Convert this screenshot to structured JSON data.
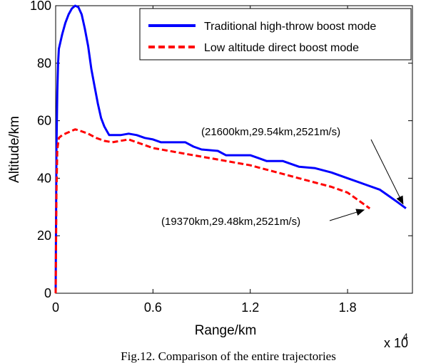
{
  "chart_data": {
    "type": "line",
    "xlabel": "Range/km",
    "ylabel": "Altitude/km",
    "x_multiplier": "x 10",
    "x_multiplier_exp": "4",
    "xlim": [
      0,
      2.2
    ],
    "ylim": [
      0,
      100
    ],
    "xticks": [
      "0",
      "0.6",
      "1.2",
      "1.8"
    ],
    "xtick_values": [
      0,
      0.6,
      1.2,
      1.8
    ],
    "yticks": [
      "0",
      "20",
      "40",
      "60",
      "80",
      "100"
    ],
    "ytick_values": [
      0,
      20,
      40,
      60,
      80,
      100
    ],
    "grid": false,
    "legend_position": "top-right",
    "series": [
      {
        "name": "Traditional high-throw boost mode",
        "color": "#0000ff",
        "style": "solid",
        "points": [
          [
            0,
            0
          ],
          [
            0.005,
            50
          ],
          [
            0.01,
            70
          ],
          [
            0.015,
            80
          ],
          [
            0.02,
            85
          ],
          [
            0.04,
            90
          ],
          [
            0.06,
            94
          ],
          [
            0.08,
            97
          ],
          [
            0.1,
            99
          ],
          [
            0.12,
            100
          ],
          [
            0.14,
            99.5
          ],
          [
            0.16,
            97
          ],
          [
            0.18,
            92
          ],
          [
            0.2,
            86
          ],
          [
            0.22,
            78
          ],
          [
            0.24,
            72
          ],
          [
            0.26,
            66
          ],
          [
            0.28,
            61
          ],
          [
            0.3,
            58
          ],
          [
            0.32,
            56
          ],
          [
            0.33,
            55
          ],
          [
            0.4,
            55
          ],
          [
            0.45,
            55.5
          ],
          [
            0.5,
            55
          ],
          [
            0.55,
            54
          ],
          [
            0.6,
            53.5
          ],
          [
            0.65,
            52.5
          ],
          [
            0.8,
            52.5
          ],
          [
            0.85,
            51
          ],
          [
            0.9,
            50
          ],
          [
            1.0,
            49.5
          ],
          [
            1.05,
            48
          ],
          [
            1.2,
            48
          ],
          [
            1.25,
            47
          ],
          [
            1.3,
            46
          ],
          [
            1.4,
            46
          ],
          [
            1.45,
            45
          ],
          [
            1.5,
            44
          ],
          [
            1.6,
            43.5
          ],
          [
            1.7,
            42
          ],
          [
            1.8,
            40
          ],
          [
            1.9,
            38
          ],
          [
            2.0,
            36
          ],
          [
            2.05,
            34
          ],
          [
            2.1,
            32
          ],
          [
            2.16,
            29.54
          ]
        ]
      },
      {
        "name": "Low altitude direct boost mode",
        "color": "#ff0000",
        "style": "dashed",
        "points": [
          [
            0,
            0
          ],
          [
            0.005,
            35
          ],
          [
            0.01,
            50
          ],
          [
            0.02,
            54
          ],
          [
            0.04,
            55
          ],
          [
            0.06,
            55.5
          ],
          [
            0.08,
            56
          ],
          [
            0.1,
            56.5
          ],
          [
            0.12,
            57
          ],
          [
            0.15,
            56.5
          ],
          [
            0.2,
            55.5
          ],
          [
            0.25,
            54
          ],
          [
            0.3,
            53
          ],
          [
            0.35,
            52.5
          ],
          [
            0.4,
            53
          ],
          [
            0.45,
            53.5
          ],
          [
            0.5,
            52.5
          ],
          [
            0.55,
            51.5
          ],
          [
            0.6,
            50.5
          ],
          [
            0.7,
            49.5
          ],
          [
            0.8,
            48.5
          ],
          [
            0.9,
            47.5
          ],
          [
            1.0,
            46.5
          ],
          [
            1.1,
            45.5
          ],
          [
            1.2,
            44.5
          ],
          [
            1.3,
            43
          ],
          [
            1.4,
            41.5
          ],
          [
            1.5,
            40
          ],
          [
            1.6,
            38.5
          ],
          [
            1.7,
            37
          ],
          [
            1.8,
            35
          ],
          [
            1.85,
            33
          ],
          [
            1.9,
            31
          ],
          [
            1.937,
            29.48
          ]
        ]
      }
    ],
    "annotations": [
      {
        "text": "(21600km,29.54km,2521m/s)",
        "x": 2.16,
        "y": 29.54
      },
      {
        "text": "(19370km,29.48km,2521m/s)",
        "x": 1.937,
        "y": 29.48
      }
    ],
    "caption": "Fig.12. Comparison of the entire trajectories"
  }
}
